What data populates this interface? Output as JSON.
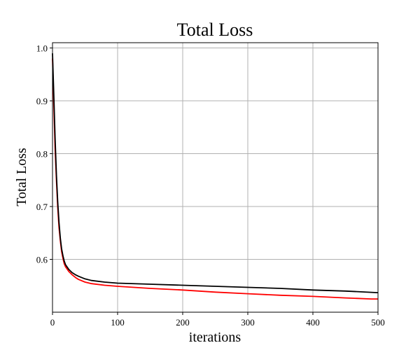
{
  "chart_data": {
    "type": "line",
    "title": "Total Loss",
    "xlabel": "iterations",
    "ylabel": "Total Loss",
    "xlim": [
      0,
      500
    ],
    "ylim": [
      0.5,
      1.01
    ],
    "xticks": [
      0,
      100,
      200,
      300,
      400,
      500
    ],
    "yticks": [
      0.6,
      0.7,
      0.8,
      0.9,
      1.0
    ],
    "xtick_labels": [
      "0",
      "100",
      "200",
      "300",
      "400",
      "500"
    ],
    "ytick_labels": [
      "0.6",
      "0.7",
      "0.8",
      "0.9",
      "1.0"
    ],
    "grid": true,
    "series": [
      {
        "color": "#ff0000",
        "x": [
          0,
          2,
          4,
          6,
          8,
          10,
          12,
          14,
          16,
          18,
          20,
          25,
          30,
          35,
          40,
          50,
          60,
          80,
          100,
          150,
          200,
          250,
          300,
          350,
          400,
          450,
          490,
          500
        ],
        "y": [
          0.98,
          0.89,
          0.81,
          0.75,
          0.7,
          0.66,
          0.635,
          0.615,
          0.602,
          0.592,
          0.586,
          0.577,
          0.571,
          0.566,
          0.562,
          0.557,
          0.554,
          0.551,
          0.549,
          0.545,
          0.542,
          0.538,
          0.535,
          0.532,
          0.53,
          0.527,
          0.525,
          0.525
        ]
      },
      {
        "color": "#000000",
        "x": [
          0,
          2,
          4,
          6,
          8,
          10,
          12,
          14,
          16,
          18,
          20,
          25,
          30,
          35,
          40,
          50,
          60,
          80,
          100,
          150,
          200,
          250,
          300,
          350,
          400,
          450,
          500
        ],
        "y": [
          0.99,
          0.91,
          0.83,
          0.76,
          0.71,
          0.67,
          0.64,
          0.62,
          0.607,
          0.597,
          0.59,
          0.581,
          0.575,
          0.571,
          0.568,
          0.563,
          0.56,
          0.557,
          0.555,
          0.553,
          0.551,
          0.549,
          0.547,
          0.545,
          0.542,
          0.54,
          0.537
        ]
      }
    ]
  }
}
